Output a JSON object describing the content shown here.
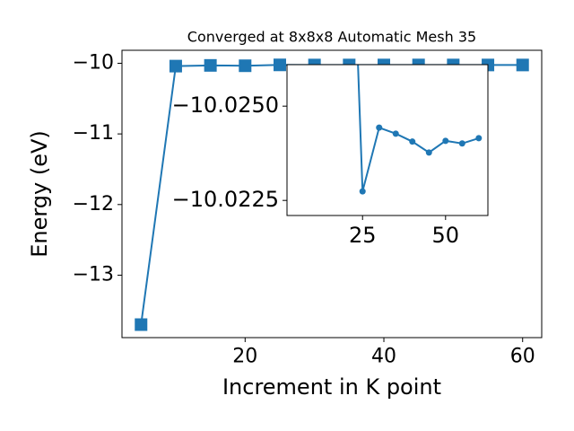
{
  "chart_data": {
    "type": "line",
    "title": "Converged at 8x8x8 Automatic Mesh 35",
    "xlabel": "Increment in K point",
    "ylabel": "Energy (eV)",
    "x": [
      5,
      10,
      15,
      20,
      25,
      30,
      35,
      40,
      45,
      50,
      55,
      60
    ],
    "values": [
      -13.7,
      -10.04,
      -10.03,
      -10.035,
      -10.02274,
      -10.02443,
      -10.02427,
      -10.02406,
      -10.02377,
      -10.02408,
      -10.02401,
      -10.02415
    ],
    "color": "#1f77b4",
    "xlim": [
      2.25,
      62.75
    ],
    "xticks": [
      20,
      40,
      60
    ],
    "ylim": [
      -13.884,
      -9.816
    ],
    "yticks": [
      {
        "value": -13,
        "label": "−13"
      },
      {
        "value": -12,
        "label": "−12"
      },
      {
        "value": -11,
        "label": "−11"
      },
      {
        "value": -10,
        "label": "−10"
      }
    ],
    "inset": {
      "xlim": [
        2.25,
        62.75
      ],
      "xticks": [
        25,
        50
      ],
      "ylim": [
        -10.0221,
        -10.0261
      ],
      "yticks": [
        {
          "value": -10.025,
          "label": "−10.0250"
        },
        {
          "value": -10.0225,
          "label": "−10.0225"
        }
      ]
    }
  }
}
